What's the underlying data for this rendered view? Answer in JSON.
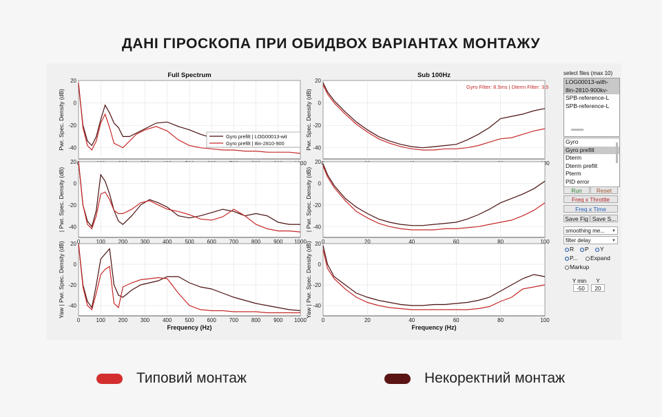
{
  "headline": "ДАНІ ГІРОСКОПА ПРИ ОБИДВОХ ВАРІАНТАХ МОНТАЖУ",
  "colors": {
    "typical": "#d32f2f",
    "incorrect": "#5a1414",
    "trace_light": "#c62828",
    "trace_dark": "#4a0f0f"
  },
  "legend": {
    "typical": "Типовий монтаж",
    "incorrect": "Некоректний монтаж"
  },
  "plots": {
    "left_title": "Full Spectrum",
    "right_title": "Sub 100Hz",
    "xlabel": "Frequency (Hz)",
    "ylabels": [
      "Pwr. Spec. Density (dB)",
      "| Pwr. Spec. Density (dB)",
      "Yaw | Pwr. Spec. Density (dB)"
    ],
    "axis_header": "Frequency (Hz)",
    "left_xticks": [
      "0",
      "100",
      "200",
      "300",
      "400",
      "500",
      "600",
      "700",
      "800",
      "900",
      "1000"
    ],
    "right_xticks": [
      "0",
      "20",
      "40",
      "60",
      "80",
      "100"
    ],
    "yticks": [
      "20",
      "0",
      "-20",
      "-40"
    ],
    "inset_legend": [
      "Gyro prefilt | LOG00013-wit",
      "Gyro prefilt | 8in-2810-900"
    ],
    "sub_filter_text": "Gyro Filter: 8.5ms | Dterm Filter: 3.5"
  },
  "chart_data": {
    "type": "line",
    "xlabel": "Frequency (Hz)",
    "ylabel": "Pwr. Spec. Density (dB)",
    "ylim": [
      -50,
      20
    ],
    "charts": [
      {
        "title": "Full Spectrum",
        "xlim": [
          0,
          1000
        ],
        "series": [
          {
            "name": "Gyro prefilt | LOG00013-wit",
            "color": "dark",
            "x": [
              0,
              20,
              40,
              60,
              80,
              100,
              120,
              140,
              160,
              180,
              200,
              230,
              260,
              300,
              350,
              400,
              450,
              500,
              550,
              600,
              650,
              700,
              750,
              800,
              850,
              900,
              950,
              1000
            ],
            "y": [
              16,
              -20,
              -34,
              -38,
              -30,
              -15,
              -2,
              -9,
              -18,
              -22,
              -30,
              -30,
              -27,
              -23,
              -18,
              -17,
              -21,
              -24,
              -28,
              -31,
              -33,
              -34,
              -34,
              -35,
              -35,
              -35,
              -35,
              -36
            ]
          },
          {
            "name": "Gyro prefilt | 8in-2810-900",
            "color": "light",
            "x": [
              0,
              20,
              40,
              60,
              80,
              100,
              120,
              140,
              160,
              180,
              200,
              230,
              260,
              300,
              350,
              400,
              450,
              500,
              550,
              600,
              650,
              700,
              750,
              800,
              850,
              900,
              950,
              1000
            ],
            "y": [
              18,
              -22,
              -38,
              -42,
              -34,
              -18,
              -10,
              -22,
              -36,
              -38,
              -40,
              -34,
              -28,
              -24,
              -21,
              -25,
              -33,
              -38,
              -40,
              -41,
              -42,
              -42,
              -43,
              -43,
              -44,
              -44,
              -44,
              -45
            ]
          }
        ]
      },
      {
        "title": "Sub 100Hz",
        "xlim": [
          0,
          100
        ],
        "series": [
          {
            "name": "dark",
            "color": "dark",
            "x": [
              0,
              2,
              5,
              10,
              15,
              20,
              25,
              30,
              35,
              40,
              45,
              50,
              55,
              60,
              65,
              70,
              75,
              80,
              85,
              90,
              95,
              100
            ],
            "y": [
              18,
              10,
              2,
              -8,
              -17,
              -24,
              -30,
              -34,
              -37,
              -39,
              -40,
              -39,
              -38,
              -37,
              -33,
              -28,
              -22,
              -14,
              -12,
              -10,
              -7,
              -5
            ]
          },
          {
            "name": "light",
            "color": "light",
            "x": [
              0,
              2,
              5,
              10,
              15,
              20,
              25,
              30,
              35,
              40,
              45,
              50,
              55,
              60,
              65,
              70,
              75,
              80,
              85,
              90,
              95,
              100
            ],
            "y": [
              16,
              8,
              0,
              -10,
              -19,
              -26,
              -32,
              -36,
              -39,
              -41,
              -42,
              -42,
              -41,
              -41,
              -40,
              -38,
              -35,
              -32,
              -31,
              -28,
              -25,
              -23
            ]
          }
        ]
      },
      {
        "title": "Full Spectrum",
        "xlim": [
          0,
          1000
        ],
        "series": [
          {
            "name": "dark",
            "color": "dark",
            "x": [
              0,
              20,
              40,
              60,
              80,
              100,
              120,
              140,
              160,
              180,
              200,
              240,
              280,
              320,
              360,
              400,
              450,
              500,
              550,
              600,
              650,
              700,
              750,
              800,
              850,
              900,
              950,
              1000
            ],
            "y": [
              20,
              -20,
              -35,
              -40,
              -25,
              8,
              2,
              -10,
              -25,
              -35,
              -38,
              -30,
              -20,
              -15,
              -18,
              -22,
              -30,
              -32,
              -30,
              -27,
              -24,
              -26,
              -30,
              -28,
              -30,
              -36,
              -38,
              -38
            ]
          },
          {
            "name": "light",
            "color": "light",
            "x": [
              0,
              20,
              40,
              60,
              80,
              100,
              120,
              140,
              160,
              180,
              200,
              240,
              280,
              320,
              360,
              400,
              450,
              500,
              550,
              600,
              650,
              700,
              750,
              800,
              850,
              900,
              950,
              1000
            ],
            "y": [
              20,
              -20,
              -38,
              -42,
              -30,
              -10,
              -8,
              -15,
              -25,
              -28,
              -28,
              -24,
              -18,
              -16,
              -20,
              -24,
              -26,
              -29,
              -33,
              -34,
              -31,
              -24,
              -30,
              -38,
              -42,
              -44,
              -44,
              -45
            ]
          }
        ]
      },
      {
        "title": "Sub 100Hz",
        "xlim": [
          0,
          100
        ],
        "series": [
          {
            "name": "dark",
            "color": "dark",
            "x": [
              0,
              2,
              5,
              10,
              15,
              20,
              25,
              30,
              35,
              40,
              45,
              50,
              55,
              60,
              65,
              70,
              75,
              80,
              85,
              90,
              95,
              100
            ],
            "y": [
              18,
              8,
              -2,
              -14,
              -22,
              -28,
              -33,
              -36,
              -38,
              -39,
              -39,
              -38,
              -37,
              -36,
              -33,
              -29,
              -24,
              -18,
              -14,
              -10,
              -5,
              2
            ]
          },
          {
            "name": "light",
            "color": "light",
            "x": [
              0,
              2,
              5,
              10,
              15,
              20,
              25,
              30,
              35,
              40,
              45,
              50,
              55,
              60,
              65,
              70,
              75,
              80,
              85,
              90,
              95,
              100
            ],
            "y": [
              16,
              6,
              -4,
              -16,
              -26,
              -32,
              -37,
              -40,
              -42,
              -43,
              -43,
              -43,
              -42,
              -42,
              -41,
              -40,
              -38,
              -36,
              -34,
              -30,
              -25,
              -18
            ]
          }
        ]
      },
      {
        "title": "Full Spectrum",
        "xlim": [
          0,
          1000
        ],
        "series": [
          {
            "name": "dark",
            "color": "dark",
            "x": [
              0,
              20,
              40,
              60,
              80,
              100,
              120,
              140,
              160,
              180,
              200,
              240,
              280,
              320,
              360,
              400,
              450,
              500,
              550,
              600,
              650,
              700,
              750,
              800,
              850,
              900,
              950,
              1000
            ],
            "y": [
              20,
              -20,
              -36,
              -42,
              -20,
              5,
              10,
              15,
              -20,
              -30,
              -32,
              -25,
              -20,
              -18,
              -16,
              -12,
              -12,
              -18,
              -22,
              -24,
              -28,
              -32,
              -35,
              -38,
              -40,
              -42,
              -44,
              -45
            ]
          },
          {
            "name": "light",
            "color": "light",
            "x": [
              0,
              20,
              40,
              60,
              80,
              100,
              120,
              140,
              160,
              180,
              200,
              240,
              280,
              320,
              360,
              400,
              450,
              500,
              550,
              600,
              650,
              700,
              750,
              800,
              850,
              900,
              950,
              1000
            ],
            "y": [
              20,
              -22,
              -40,
              -44,
              -28,
              -10,
              -5,
              -2,
              -38,
              -42,
              -22,
              -18,
              -15,
              -14,
              -13,
              -14,
              -28,
              -40,
              -44,
              -45,
              -45,
              -46,
              -46,
              -46,
              -47,
              -47,
              -47,
              -47
            ]
          }
        ]
      },
      {
        "title": "Sub 100Hz",
        "xlim": [
          0,
          100
        ],
        "series": [
          {
            "name": "dark",
            "color": "dark",
            "x": [
              0,
              2,
              5,
              10,
              15,
              20,
              25,
              30,
              35,
              40,
              45,
              50,
              55,
              60,
              65,
              70,
              75,
              80,
              85,
              90,
              95,
              100
            ],
            "y": [
              18,
              0,
              -12,
              -20,
              -28,
              -32,
              -35,
              -37,
              -39,
              -40,
              -40,
              -39,
              -39,
              -38,
              -37,
              -35,
              -32,
              -26,
              -20,
              -14,
              -10,
              -12
            ]
          },
          {
            "name": "light",
            "color": "light",
            "x": [
              0,
              2,
              5,
              10,
              15,
              20,
              25,
              30,
              35,
              40,
              45,
              50,
              55,
              60,
              65,
              70,
              75,
              80,
              85,
              90,
              95,
              100
            ],
            "y": [
              14,
              -4,
              -14,
              -24,
              -32,
              -37,
              -40,
              -42,
              -43,
              -44,
              -44,
              -44,
              -44,
              -44,
              -44,
              -43,
              -41,
              -36,
              -32,
              -24,
              -22,
              -20
            ]
          }
        ]
      }
    ]
  },
  "controls": {
    "select_files_label": "select files (max 10)",
    "files": [
      "LOG00013-with-",
      "8in-2810-900kv-",
      "SPB-reference-L",
      "SPB-reference-L"
    ],
    "types": [
      "Gyro",
      "Gyro prefilt",
      "Dterm",
      "Dterm prefilt",
      "Pterm",
      "PID error"
    ],
    "run": "Run",
    "reset": "Reset",
    "freq_throttle": "Freq x Throttle",
    "freq_time": "Freq x Time",
    "save_fig": "Save Fig",
    "save_s": "Save S...",
    "smoothing": "smoothing me...",
    "filter_delay": "filter delay",
    "r": "R",
    "p": "P",
    "y": "Y",
    "p_short": "P...",
    "expand": "Expand",
    "markup": "Markup",
    "ymin_label": "Y min",
    "y_label": "Y",
    "ymin_value": "-50",
    "ymax_value": "20"
  }
}
